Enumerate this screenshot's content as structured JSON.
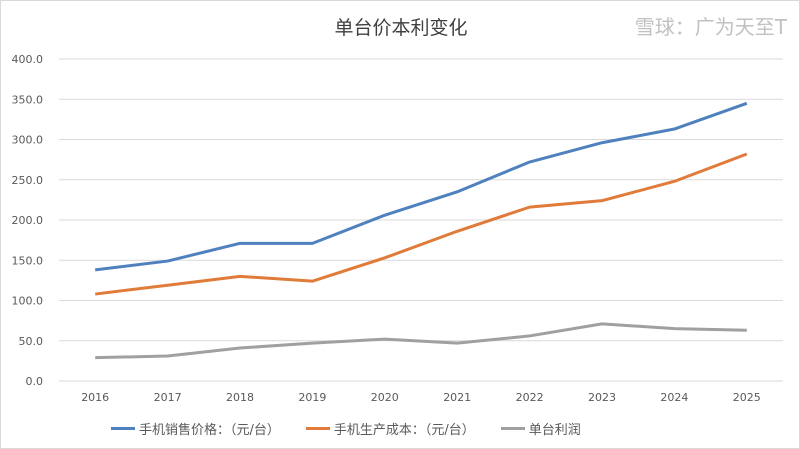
{
  "chart_data": {
    "type": "line",
    "title": "单台价本利变化",
    "x": [
      "2016",
      "2017",
      "2018",
      "2019",
      "2020",
      "2021",
      "2022",
      "2023",
      "2024",
      "2025"
    ],
    "ylim": [
      0,
      400
    ],
    "yticks": [
      "0.0",
      "50.0",
      "100.0",
      "150.0",
      "200.0",
      "250.0",
      "300.0",
      "350.0",
      "400.0"
    ],
    "grid": true,
    "legend": "bottom",
    "series": [
      {
        "name": "手机销售价格：（元/台）",
        "color": "#4e81bd",
        "values": [
          138,
          149,
          171,
          171,
          206,
          235,
          272,
          296,
          313,
          345
        ]
      },
      {
        "name": "手机生产成本：（元/台）",
        "color": "#e07b39",
        "values": [
          108,
          119,
          130,
          124,
          153,
          186,
          216,
          224,
          248,
          282
        ]
      },
      {
        "name": "单台利润",
        "color": "#a0a0a0",
        "values": [
          29,
          31,
          41,
          47,
          52,
          47,
          56,
          71,
          65,
          63
        ]
      }
    ]
  },
  "watermark": "雪球：广为天至T"
}
